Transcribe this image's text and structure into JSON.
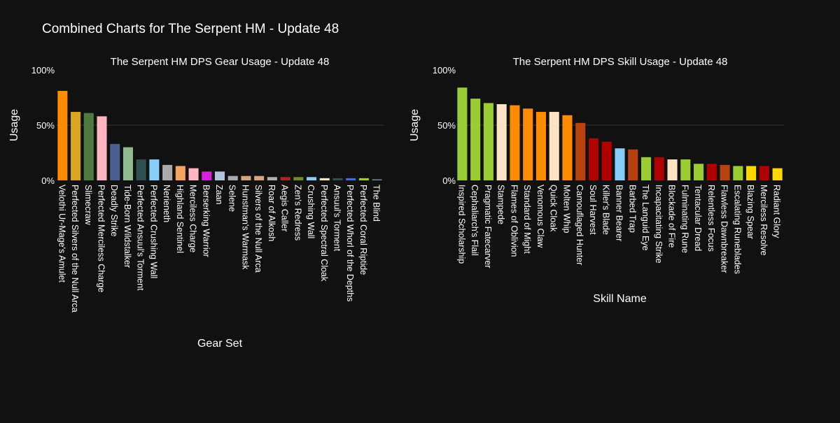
{
  "title": "Combined Charts for The Serpent HM - Update 48",
  "chart_data": [
    {
      "type": "bar",
      "title": "The Serpent HM DPS Gear Usage - Update 48",
      "xlabel": "Gear Set",
      "ylabel": "Usage",
      "ylim": [
        0,
        100
      ],
      "yticks": [
        "0%",
        "50%",
        "100%"
      ],
      "grid": true,
      "legend": "none",
      "categories": [
        "Velothi Ur-Mage's Amulet",
        "Perfected Silvers of the Null Arca",
        "Slimecraw",
        "Perfected Merciless Charge",
        "Deadly Strike",
        "Tide-Born Wildstalker",
        "Perfected Ansuul's Torment",
        "Perfected Crushing Wall",
        "Nerieneth",
        "Highland Sentinel",
        "Merciless Charge",
        "Berserking Warrior",
        "Zaan",
        "Selene",
        "Hunstman's Warmask",
        "Silvers of the Null Arca",
        "Roar of Alkosh",
        "Aegis Caller",
        "Zen's Redress",
        "Crushing Wall",
        "Perfected Spectral Cloak",
        "Ansuul's Torment",
        "Perfected Whorl of the Depths",
        "Perfected Coral Riptide",
        "The Blind"
      ],
      "values": [
        81,
        62,
        61,
        58,
        33,
        30,
        19,
        19,
        14,
        13,
        11,
        8,
        8,
        4,
        4,
        4,
        3,
        3,
        3,
        3,
        2,
        2,
        2,
        2,
        1
      ],
      "colors": [
        "#ff8c00",
        "#daa520",
        "#4f7942",
        "#ffb6c1",
        "#4a5f8f",
        "#8fbc8f",
        "#2f4f4f",
        "#87cefa",
        "#a9a9a9",
        "#f4a460",
        "#ffb6c1",
        "#da20da",
        "#b0c4de",
        "#a9a9a9",
        "#d2a679",
        "#d2a679",
        "#b0b0b0",
        "#b22222",
        "#6b8e23",
        "#87cefa",
        "#ffe4b5",
        "#2f4f4f",
        "#4169e1",
        "#9acd32",
        "#708090"
      ]
    },
    {
      "type": "bar",
      "title": "The Serpent HM DPS Skill Usage - Update 48",
      "xlabel": "Skill Name",
      "ylabel": "Usage",
      "ylim": [
        0,
        100
      ],
      "yticks": [
        "0%",
        "50%",
        "100%"
      ],
      "grid": true,
      "legend": "none",
      "categories": [
        "Inspired Scholarship",
        "Cephaliarch's Flail",
        "Pragmatic Fatecarver",
        "Stampede",
        "Flames of Oblivion",
        "Standard of Might",
        "Venomous Claw",
        "Quick Cloak",
        "Molten Whip",
        "Camouflaged Hunter",
        "Soul Harvest",
        "Killer's Blade",
        "Banner Bearer",
        "Barbed Trap",
        "The Languid Eye",
        "Incapacitating Strike",
        "Blockade of Fire",
        "Fulminating Rune",
        "Tentacular Dread",
        "Relentless Focus",
        "Flawless Dawnbreaker",
        "Escalating Runeblades",
        "Blazing Spear",
        "Merciless Resolve",
        "Radiant Glory"
      ],
      "values": [
        84,
        74,
        70,
        69,
        68,
        65,
        62,
        62,
        59,
        52,
        38,
        35,
        29,
        28,
        21,
        21,
        19,
        19,
        15,
        15,
        14,
        13,
        13,
        13,
        11
      ],
      "colors": [
        "#9acd32",
        "#9acd32",
        "#9acd32",
        "#ffe4c4",
        "#ff8c00",
        "#ff8c00",
        "#ff8c00",
        "#ffe4c4",
        "#ff8c00",
        "#b8420f",
        "#b00000",
        "#b00000",
        "#87cefa",
        "#b8420f",
        "#9acd32",
        "#b00000",
        "#ffe4c4",
        "#9acd32",
        "#9acd32",
        "#b00000",
        "#b8420f",
        "#9acd32",
        "#ffd700",
        "#b00000",
        "#ffd700"
      ]
    }
  ]
}
